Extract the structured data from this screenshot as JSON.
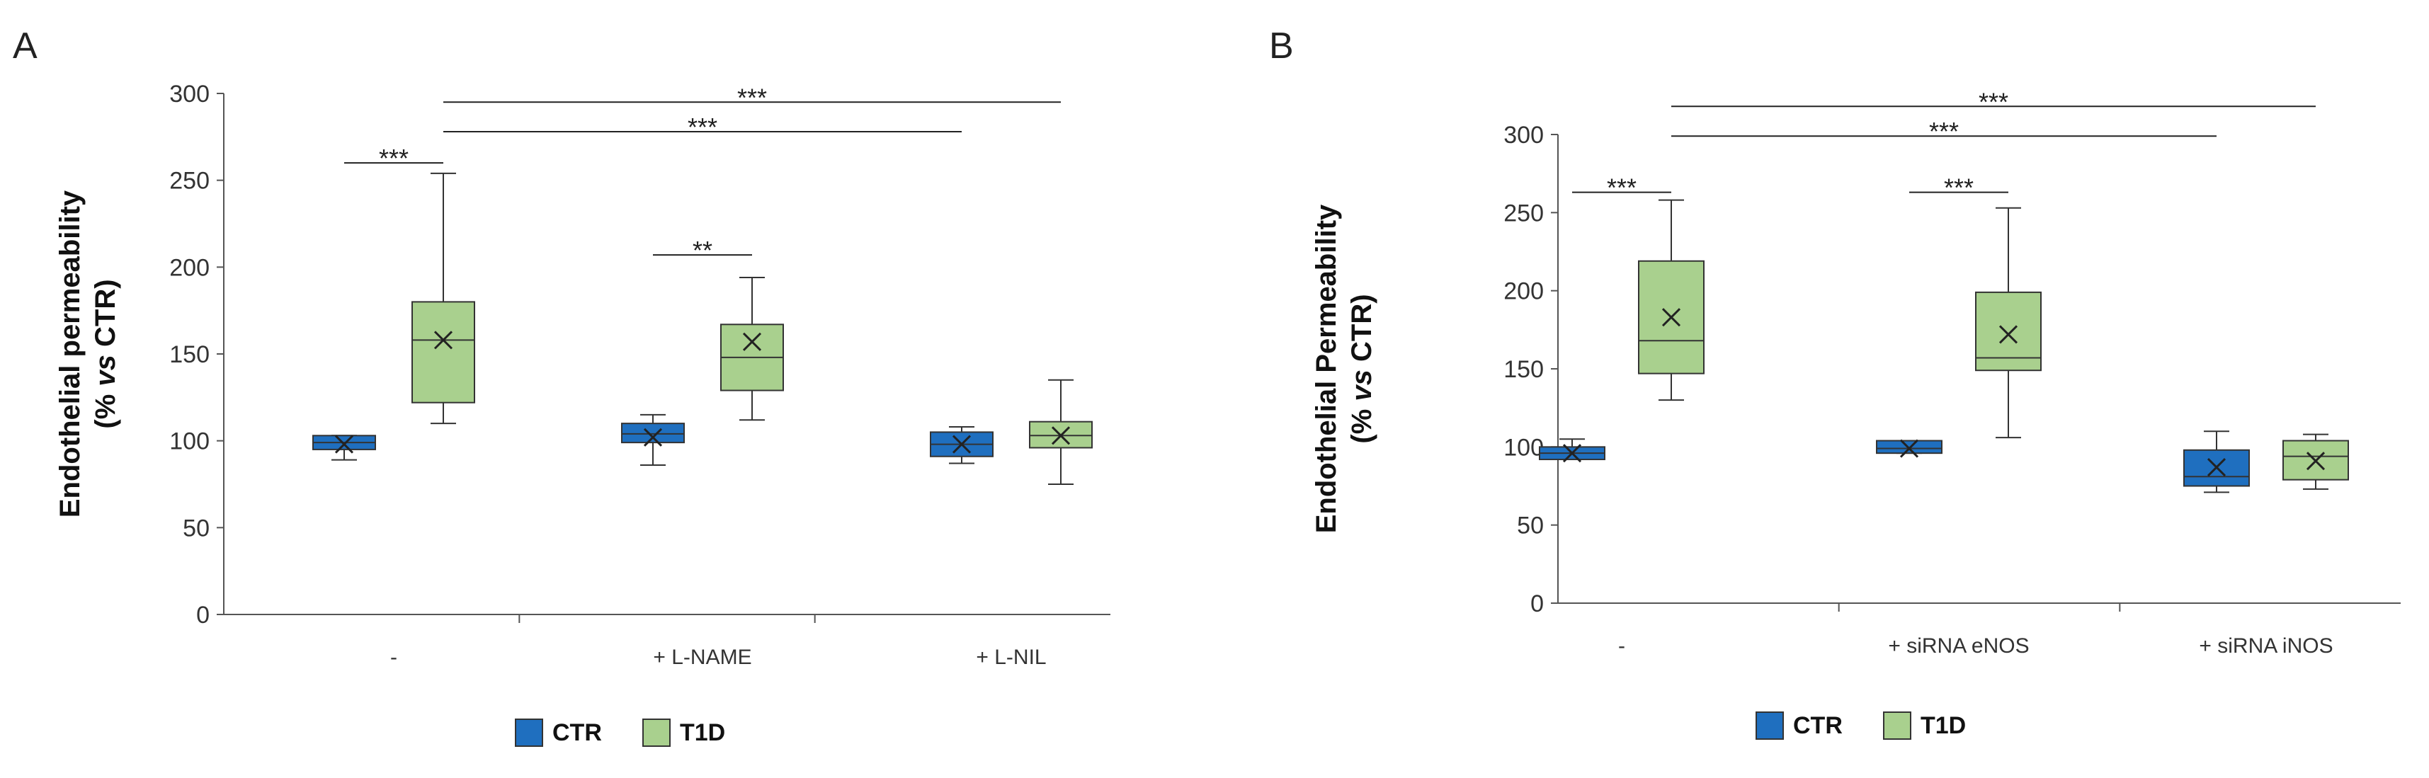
{
  "chart_data": [
    {
      "panel": "A",
      "type": "box",
      "ylabel_line1": "Endothelial permeability",
      "ylabel_line2_prefix": "(% ",
      "ylabel_line2_italic": "vs",
      "ylabel_line2_suffix": " CTR)",
      "ylim": [
        0,
        300
      ],
      "yticks": [
        0,
        50,
        100,
        150,
        200,
        250,
        300
      ],
      "categories": [
        "-",
        "+ L-NAME",
        "+ L-NIL"
      ],
      "legend": [
        {
          "name": "CTR",
          "color": "#1f6fbf"
        },
        {
          "name": "T1D",
          "color": "#a9d08e"
        }
      ],
      "legend_position": "bottom",
      "series": [
        {
          "name": "CTR",
          "color": "#1f6fbf",
          "boxes": [
            {
              "min": 89,
              "q1": 95,
              "median": 99,
              "q3": 103,
              "max": 103,
              "mean": 98
            },
            {
              "min": 86,
              "q1": 99,
              "median": 104,
              "q3": 110,
              "max": 115,
              "mean": 102
            },
            {
              "min": 87,
              "q1": 91,
              "median": 98,
              "q3": 105,
              "max": 108,
              "mean": 98
            }
          ]
        },
        {
          "name": "T1D",
          "color": "#a9d08e",
          "boxes": [
            {
              "min": 110,
              "q1": 122,
              "median": 158,
              "q3": 180,
              "max": 254,
              "mean": 158
            },
            {
              "min": 112,
              "q1": 129,
              "median": 148,
              "q3": 167,
              "max": 194,
              "mean": 157
            },
            {
              "min": 75,
              "q1": 96,
              "median": 103,
              "q3": 111,
              "max": 135,
              "mean": 103
            }
          ]
        }
      ],
      "significance": [
        {
          "label": "***",
          "y": 260,
          "from": {
            "cat": 0,
            "series": 0
          },
          "to": {
            "cat": 0,
            "series": 1
          }
        },
        {
          "label": "**",
          "y": 207,
          "from": {
            "cat": 1,
            "series": 0
          },
          "to": {
            "cat": 1,
            "series": 1
          }
        },
        {
          "label": "***",
          "y": 278,
          "from": {
            "cat": 0,
            "series": 1
          },
          "to": {
            "cat": 2,
            "series": 0
          }
        },
        {
          "label": "***",
          "y": 295,
          "from": {
            "cat": 0,
            "series": 1
          },
          "to": {
            "cat": 2,
            "series": 1
          }
        }
      ]
    },
    {
      "panel": "B",
      "type": "box",
      "ylabel_line1": "Endothelial Permeability",
      "ylabel_line2_prefix": "(% ",
      "ylabel_line2_italic": "vs",
      "ylabel_line2_suffix": " CTR)",
      "ylim": [
        0,
        300
      ],
      "yticks": [
        0,
        50,
        100,
        150,
        200,
        250,
        300
      ],
      "categories": [
        "-",
        "+ siRNA eNOS",
        "+ siRNA iNOS"
      ],
      "legend": [
        {
          "name": "CTR",
          "color": "#1f6fbf"
        },
        {
          "name": "T1D",
          "color": "#a9d08e"
        }
      ],
      "legend_position": "bottom",
      "series": [
        {
          "name": "CTR",
          "color": "#1f6fbf",
          "boxes": [
            {
              "min": 92,
              "q1": 92,
              "median": 96,
              "q3": 100,
              "max": 105,
              "mean": 96
            },
            {
              "min": 96,
              "q1": 96,
              "median": 99,
              "q3": 104,
              "max": 104,
              "mean": 99
            },
            {
              "min": 71,
              "q1": 75,
              "median": 81,
              "q3": 98,
              "max": 110,
              "mean": 87
            }
          ]
        },
        {
          "name": "T1D",
          "color": "#a9d08e",
          "boxes": [
            {
              "min": 130,
              "q1": 147,
              "median": 168,
              "q3": 219,
              "max": 258,
              "mean": 183
            },
            {
              "min": 106,
              "q1": 149,
              "median": 157,
              "q3": 199,
              "max": 253,
              "mean": 172
            },
            {
              "min": 73,
              "q1": 79,
              "median": 94,
              "q3": 104,
              "max": 108,
              "mean": 91
            }
          ]
        }
      ],
      "significance": [
        {
          "label": "***",
          "y": 263,
          "from": {
            "cat": 0,
            "series": 0
          },
          "to": {
            "cat": 0,
            "series": 1
          }
        },
        {
          "label": "***",
          "y": 263,
          "from": {
            "cat": 1,
            "series": 0
          },
          "to": {
            "cat": 1,
            "series": 1
          }
        },
        {
          "label": "***",
          "y": 299,
          "from": {
            "cat": 0,
            "series": 1
          },
          "to": {
            "cat": 2,
            "series": 0
          }
        },
        {
          "label": "***",
          "y": 318,
          "from": {
            "cat": 0,
            "series": 1
          },
          "to": {
            "cat": 2,
            "series": 1
          }
        }
      ]
    }
  ]
}
